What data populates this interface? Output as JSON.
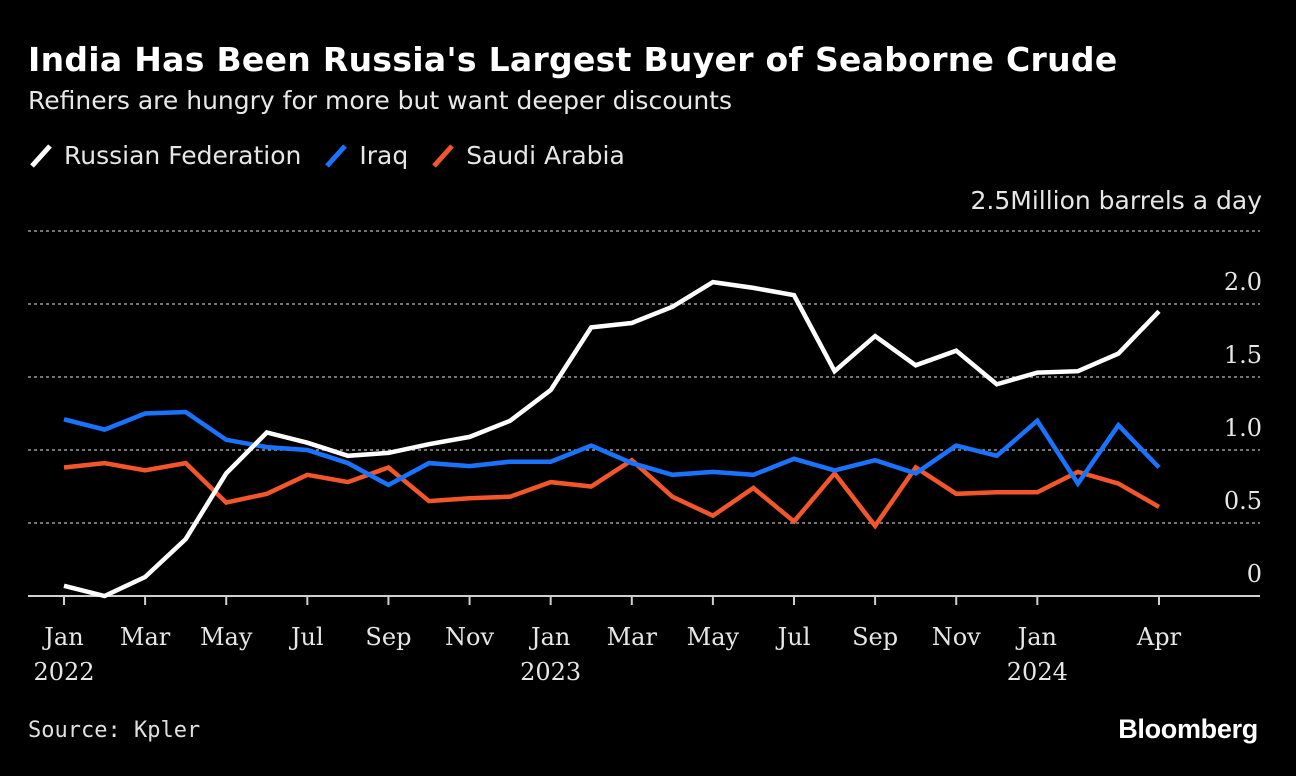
{
  "header": {
    "title": "India Has Been Russia's Largest Buyer of Seaborne Crude",
    "subtitle": "Refiners are hungry for more but want deeper discounts"
  },
  "footer": {
    "source": "Source: Kpler",
    "brand": "Bloomberg"
  },
  "colors": {
    "background": "#000000",
    "russia": "#ffffff",
    "iraq": "#1a73ff",
    "saudi": "#f2562a",
    "grid": "#9a9a9a",
    "axis": "#cfcfcf"
  },
  "chart_data": {
    "type": "line",
    "unit_label": "2.5Million barrels a day",
    "ylim": [
      0,
      2.5
    ],
    "y_ticks": [
      {
        "value": 0,
        "label": "0"
      },
      {
        "value": 0.5,
        "label": "0.5"
      },
      {
        "value": 1.0,
        "label": "1.0"
      },
      {
        "value": 1.5,
        "label": "1.5"
      },
      {
        "value": 2.0,
        "label": "2.0"
      },
      {
        "value": 2.5,
        "label": ""
      }
    ],
    "grid": true,
    "legend_position": "top-left",
    "x": [
      "2022-01",
      "2022-02",
      "2022-03",
      "2022-04",
      "2022-05",
      "2022-06",
      "2022-07",
      "2022-08",
      "2022-09",
      "2022-10",
      "2022-11",
      "2022-12",
      "2023-01",
      "2023-02",
      "2023-03",
      "2023-04",
      "2023-05",
      "2023-06",
      "2023-07",
      "2023-08",
      "2023-09",
      "2023-10",
      "2023-11",
      "2023-12",
      "2024-01",
      "2024-02",
      "2024-03",
      "2024-04"
    ],
    "x_ticks": [
      {
        "x": "2022-01",
        "month": "Jan",
        "year": "2022"
      },
      {
        "x": "2022-03",
        "month": "Mar",
        "year": ""
      },
      {
        "x": "2022-05",
        "month": "May",
        "year": ""
      },
      {
        "x": "2022-07",
        "month": "Jul",
        "year": ""
      },
      {
        "x": "2022-09",
        "month": "Sep",
        "year": ""
      },
      {
        "x": "2022-11",
        "month": "Nov",
        "year": ""
      },
      {
        "x": "2023-01",
        "month": "Jan",
        "year": "2023"
      },
      {
        "x": "2023-03",
        "month": "Mar",
        "year": ""
      },
      {
        "x": "2023-05",
        "month": "May",
        "year": ""
      },
      {
        "x": "2023-07",
        "month": "Jul",
        "year": ""
      },
      {
        "x": "2023-09",
        "month": "Sep",
        "year": ""
      },
      {
        "x": "2023-11",
        "month": "Nov",
        "year": ""
      },
      {
        "x": "2024-01",
        "month": "Jan",
        "year": "2024"
      },
      {
        "x": "2024-04",
        "month": "Apr",
        "year": ""
      }
    ],
    "series": [
      {
        "name": "Russian Federation",
        "color": "#ffffff",
        "values": [
          0.07,
          0.0,
          0.13,
          0.39,
          0.84,
          1.12,
          1.05,
          0.96,
          0.98,
          1.04,
          1.09,
          1.2,
          1.41,
          1.84,
          1.87,
          1.98,
          2.15,
          2.11,
          2.06,
          1.54,
          1.78,
          1.58,
          1.68,
          1.45,
          1.53,
          1.54,
          1.66,
          1.95
        ]
      },
      {
        "name": "Iraq",
        "color": "#1a73ff",
        "values": [
          1.21,
          1.14,
          1.25,
          1.26,
          1.07,
          1.02,
          1.0,
          0.91,
          0.76,
          0.91,
          0.89,
          0.92,
          0.92,
          1.03,
          0.91,
          0.83,
          0.85,
          0.83,
          0.94,
          0.86,
          0.93,
          0.84,
          1.03,
          0.96,
          1.2,
          0.77,
          1.17,
          0.88
        ]
      },
      {
        "name": "Saudi Arabia",
        "color": "#f2562a",
        "values": [
          0.88,
          0.91,
          0.86,
          0.91,
          0.64,
          0.7,
          0.83,
          0.78,
          0.88,
          0.65,
          0.67,
          0.68,
          0.78,
          0.75,
          0.93,
          0.68,
          0.55,
          0.74,
          0.51,
          0.84,
          0.48,
          0.88,
          0.7,
          0.71,
          0.71,
          0.85,
          0.77,
          0.61
        ]
      }
    ]
  }
}
